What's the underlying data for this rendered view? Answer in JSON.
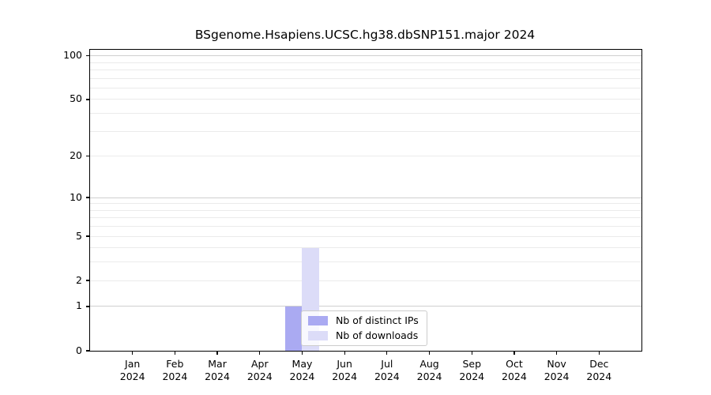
{
  "chart_data": {
    "type": "bar",
    "title": "BSgenome.Hsapiens.UCSC.hg38.dbSNP151.major 2024",
    "categories": [
      "Jan",
      "Feb",
      "Mar",
      "Apr",
      "May",
      "Jun",
      "Jul",
      "Aug",
      "Sep",
      "Oct",
      "Nov",
      "Dec"
    ],
    "year_label": "2024",
    "series": [
      {
        "name": "Nb of distinct IPs",
        "color": "#aaaaf2",
        "values": [
          0,
          0,
          0,
          0,
          1,
          0,
          0,
          0,
          0,
          0,
          0,
          0
        ]
      },
      {
        "name": "Nb of downloads",
        "color": "#dcdcf8",
        "values": [
          0,
          0,
          0,
          0,
          4,
          0,
          0,
          0,
          0,
          0,
          0,
          0
        ]
      }
    ],
    "xlabel": "",
    "ylabel": "",
    "yscale": "log1p",
    "ylim": [
      0,
      110
    ],
    "yticks": [
      0,
      1,
      2,
      5,
      10,
      20,
      50,
      100
    ],
    "minor_gridlines": [
      2,
      3,
      4,
      5,
      6,
      7,
      8,
      9,
      20,
      30,
      40,
      50,
      60,
      70,
      80,
      90
    ],
    "major_gridlines": [
      1,
      10,
      100
    ],
    "grid": true,
    "legend_position": "inside-bottom-center-left",
    "colors": {
      "minor_grid": "#ebebeb",
      "major_grid": "#cfcfcf",
      "axis": "#000000",
      "text": "#000000",
      "background": "#ffffff"
    }
  }
}
